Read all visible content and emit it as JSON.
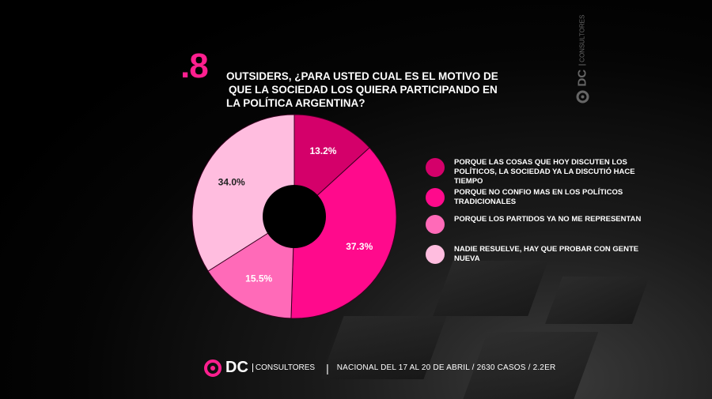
{
  "question": {
    "number": ".8",
    "lines": [
      "OUTSIDERS, ¿PARA USTED CUAL ES EL MOTIVO DE",
      "QUE LA SOCIEDAD LOS QUIERA PARTICIPANDO EN",
      "LA POLÍTICA ARGENTINA?"
    ]
  },
  "brand": {
    "logo_text": "DC",
    "logo_sub": "CONSULTORES",
    "accent": "#ff1f8f"
  },
  "footer": {
    "separator": "|",
    "text": "NACIONAL  DEL 17 AL 20 DE ABRIL / 2630 CASOS / 2.2ER"
  },
  "chart_data": {
    "type": "pie",
    "donut": true,
    "categories": [
      "PORQUE LAS COSAS QUE HOY DISCUTEN LOS POLÍTICOS, LA SOCIEDAD YA LA DISCUTIÓ HACE TIEMPO",
      "PORQUE NO CONFIO MAS EN LOS POLÍTICOS TRADICIONALES",
      "PORQUE LOS PARTIDOS YA NO ME REPRESENTAN",
      "NADIE RESUELVE, HAY QUE PROBAR CON GENTE NUEVA"
    ],
    "values": [
      13.2,
      37.3,
      15.5,
      34.0
    ],
    "labels": [
      "13.2%",
      "37.3%",
      "15.5%",
      "34.0%"
    ],
    "colors": [
      "#d4006a",
      "#ff0a8c",
      "#ff6ab8",
      "#ffbddf"
    ],
    "label_colors": [
      "#ffffff",
      "#ffffff",
      "#ffffff",
      "#222222"
    ],
    "legend_position": "right"
  }
}
